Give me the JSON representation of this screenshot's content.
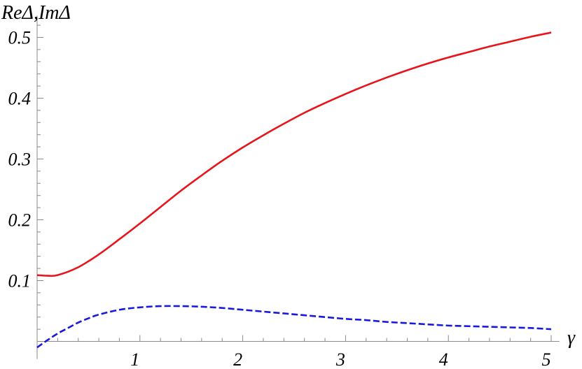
{
  "chart_data": {
    "type": "line",
    "title": "",
    "xlabel": "γ",
    "ylabel": "ReΔ,ImΔ",
    "xlim": [
      0,
      5.25
    ],
    "ylim": [
      -0.02,
      0.53
    ],
    "x_ticks": [
      {
        "value": 1,
        "label": "1"
      },
      {
        "value": 2,
        "label": "2"
      },
      {
        "value": 3,
        "label": "3"
      },
      {
        "value": 4,
        "label": "4"
      },
      {
        "value": 5,
        "label": "5"
      }
    ],
    "y_ticks": [
      {
        "value": 0.1,
        "label": "0.1"
      },
      {
        "value": 0.2,
        "label": "0.2"
      },
      {
        "value": 0.3,
        "label": "0.3"
      },
      {
        "value": 0.4,
        "label": "0.4"
      },
      {
        "value": 0.5,
        "label": "0.5"
      }
    ],
    "grid": false,
    "legend": "none",
    "series": [
      {
        "color": "#e8141b",
        "dash": "solid",
        "x": [
          0,
          0.1,
          0.2,
          0.4,
          0.6,
          0.8,
          1.0,
          1.2,
          1.4,
          1.6,
          1.8,
          2.0,
          2.2,
          2.4,
          2.6,
          2.8,
          3.0,
          3.2,
          3.4,
          3.6,
          3.8,
          4.0,
          4.2,
          4.4,
          4.6,
          4.8,
          5.0
        ],
        "y": [
          0.109,
          0.108,
          0.109,
          0.122,
          0.143,
          0.168,
          0.194,
          0.221,
          0.248,
          0.273,
          0.297,
          0.319,
          0.339,
          0.358,
          0.376,
          0.392,
          0.407,
          0.421,
          0.434,
          0.446,
          0.457,
          0.467,
          0.476,
          0.485,
          0.493,
          0.501,
          0.508
        ]
      },
      {
        "color": "#1a1adb",
        "dash": "dashed",
        "x": [
          0,
          0.1,
          0.2,
          0.3,
          0.4,
          0.5,
          0.6,
          0.8,
          1.0,
          1.2,
          1.4,
          1.6,
          1.8,
          2.0,
          2.2,
          2.4,
          2.6,
          2.8,
          3.0,
          3.2,
          3.4,
          3.6,
          3.8,
          4.0,
          4.2,
          4.4,
          4.6,
          4.8,
          5.0
        ],
        "y": [
          -0.01,
          0.002,
          0.013,
          0.022,
          0.031,
          0.038,
          0.044,
          0.052,
          0.056,
          0.058,
          0.058,
          0.057,
          0.055,
          0.052,
          0.049,
          0.046,
          0.043,
          0.04,
          0.037,
          0.035,
          0.032,
          0.03,
          0.028,
          0.026,
          0.025,
          0.024,
          0.023,
          0.022,
          0.02
        ]
      }
    ]
  }
}
